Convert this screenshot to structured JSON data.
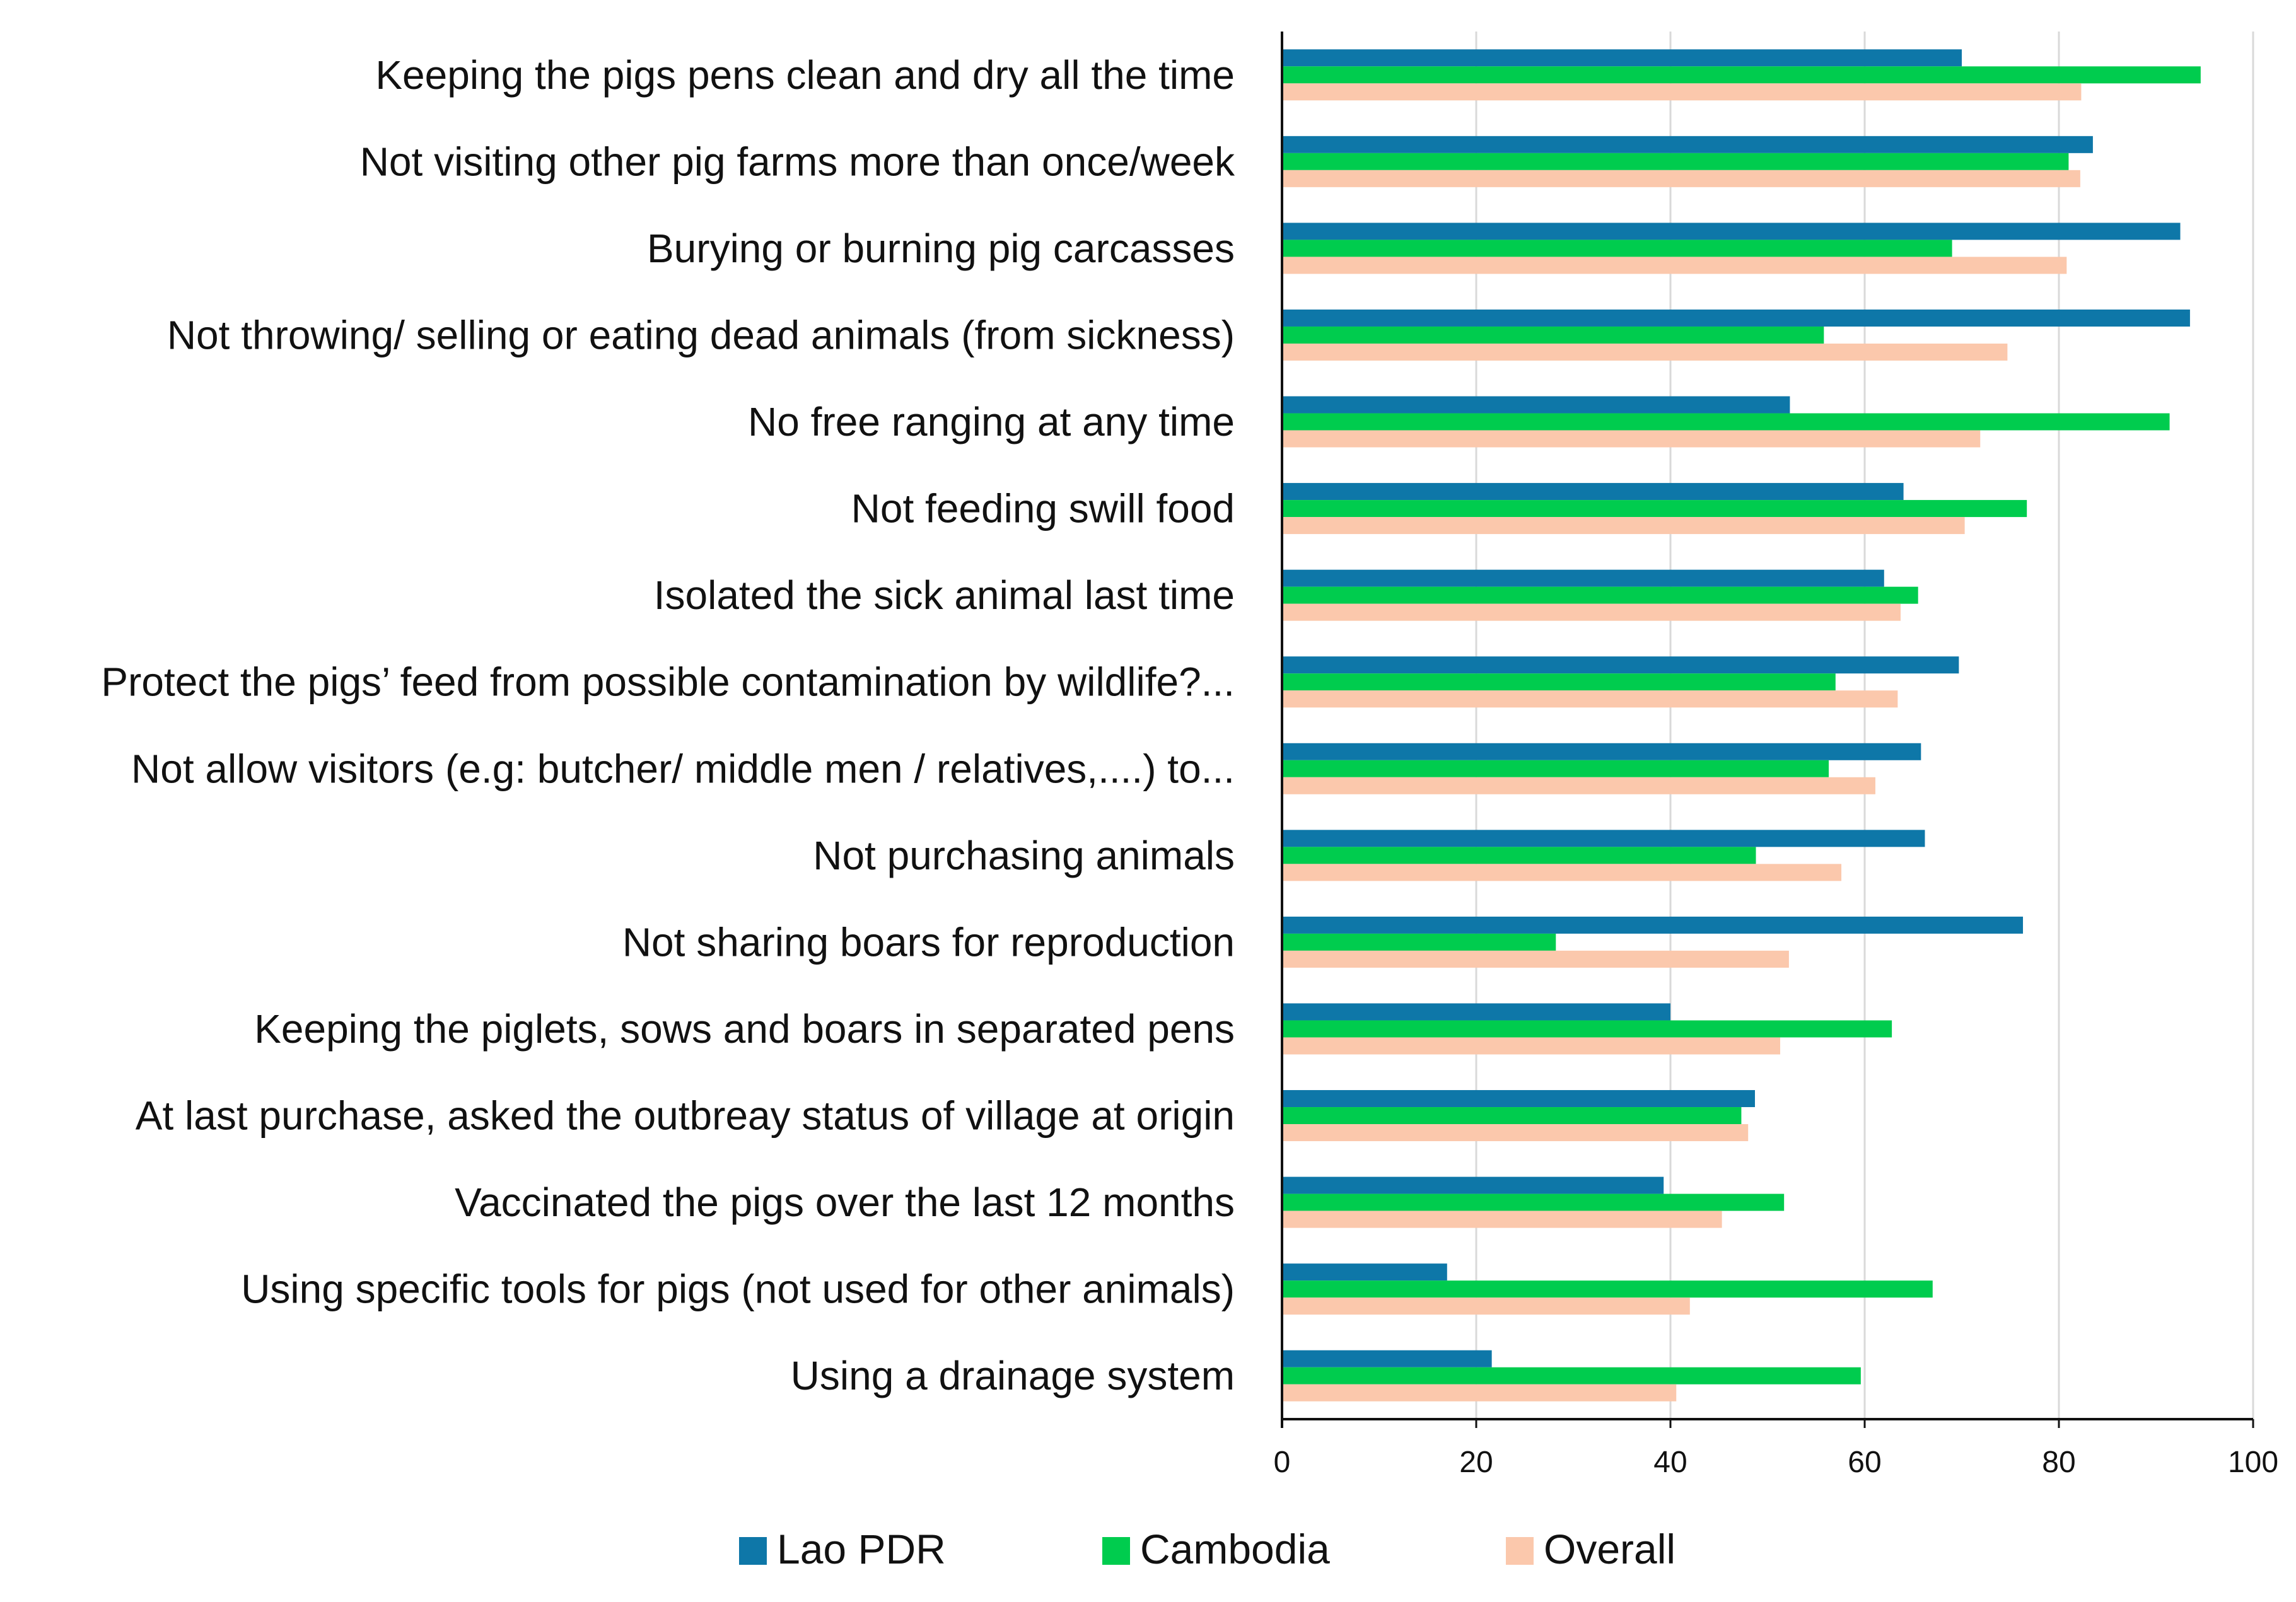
{
  "chart_data": {
    "type": "bar",
    "orientation": "horizontal",
    "title": "",
    "xlabel": "",
    "ylabel": "",
    "xlim": [
      0,
      100
    ],
    "xticks": [
      0,
      20,
      40,
      60,
      80,
      100
    ],
    "grid": "vertical",
    "legend_position": "bottom",
    "categories": [
      "Keeping the pigs pens clean and dry all the time",
      "Not visiting other pig farms more than once/week",
      "Burying or burning pig carcasses",
      "Not throwing/ selling or eating dead animals (from sickness)",
      "No free ranging at any time",
      "Not feeding swill food",
      "Isolated the sick animal last time",
      "Protect the pigs’ feed from possible contamination by wildlife?...",
      "Not allow visitors (e.g: butcher/ middle men / relatives,....) to...",
      "Not purchasing animals",
      "Not sharing boars for reproduction",
      "Keeping the piglets, sows and boars in separated pens",
      "At last purchase, asked the outbreay status of village at origin",
      "Vaccinated the pigs over the last 12 months",
      "Using specific tools for pigs (not used for other animals)",
      "Using a drainage system"
    ],
    "series": [
      {
        "name": "Lao PDR",
        "color": "#0e77a8",
        "values": [
          70,
          83.5,
          92.5,
          93.5,
          52.3,
          64,
          62,
          69.7,
          65.8,
          66.2,
          76.3,
          40,
          48.7,
          39.3,
          17,
          21.6
        ]
      },
      {
        "name": "Cambodia",
        "color": "#00cc4e",
        "values": [
          94.6,
          81,
          69,
          55.8,
          91.4,
          76.7,
          65.5,
          57,
          56.3,
          48.8,
          28.2,
          62.8,
          47.3,
          51.7,
          67,
          59.6
        ]
      },
      {
        "name": "Overall",
        "color": "#fbc8ac",
        "values": [
          82.3,
          82.2,
          80.8,
          74.7,
          71.9,
          70.3,
          63.7,
          63.4,
          61.1,
          57.6,
          52.2,
          51.3,
          48,
          45.3,
          42,
          40.6
        ]
      }
    ]
  }
}
